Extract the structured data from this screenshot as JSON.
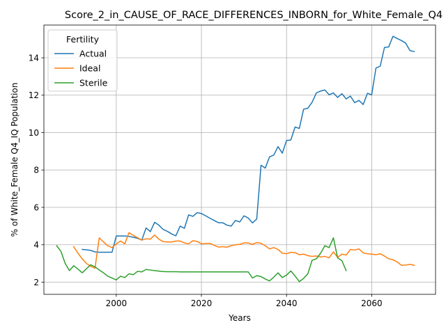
{
  "chart_data": {
    "type": "line",
    "title": "Score_2_in_CAUSE_OF_RACE_DIFFERENCES_INBORN_for_White_Female_Q4",
    "xlabel": "Years",
    "ylabel": "% of White_Female Q4_IQ Population",
    "xlim": [
      1983,
      2075
    ],
    "ylim": [
      1.35,
      15.75
    ],
    "x_ticks": [
      2000,
      2020,
      2040,
      2060
    ],
    "y_ticks": [
      2,
      4,
      6,
      8,
      10,
      12,
      14
    ],
    "grid": true,
    "legend": {
      "title": "Fertility",
      "placement": "top-left"
    },
    "series": [
      {
        "name": "Actual",
        "color": "#1f77b4",
        "points": [
          [
            1992,
            3.75
          ],
          [
            1993,
            3.73
          ],
          [
            1994,
            3.7
          ],
          [
            1995,
            3.62
          ],
          [
            1996,
            3.6
          ],
          [
            1997,
            3.6
          ],
          [
            1998,
            3.6
          ],
          [
            1999,
            3.6
          ],
          [
            2000,
            4.47
          ],
          [
            2001,
            4.47
          ],
          [
            2002,
            4.47
          ],
          [
            2003,
            4.45
          ],
          [
            2004,
            4.4
          ],
          [
            2005,
            4.35
          ],
          [
            2006,
            4.25
          ],
          [
            2007,
            4.9
          ],
          [
            2008,
            4.7
          ],
          [
            2009,
            5.2
          ],
          [
            2010,
            5.05
          ],
          [
            2011,
            4.82
          ],
          [
            2012,
            4.72
          ],
          [
            2013,
            4.58
          ],
          [
            2014,
            4.48
          ],
          [
            2015,
            5.0
          ],
          [
            2016,
            4.88
          ],
          [
            2017,
            5.6
          ],
          [
            2018,
            5.52
          ],
          [
            2019,
            5.72
          ],
          [
            2020,
            5.67
          ],
          [
            2021,
            5.55
          ],
          [
            2022,
            5.42
          ],
          [
            2023,
            5.3
          ],
          [
            2024,
            5.18
          ],
          [
            2025,
            5.18
          ],
          [
            2026,
            5.05
          ],
          [
            2027,
            5.0
          ],
          [
            2028,
            5.3
          ],
          [
            2029,
            5.22
          ],
          [
            2030,
            5.55
          ],
          [
            2031,
            5.43
          ],
          [
            2032,
            5.17
          ],
          [
            2033,
            5.38
          ],
          [
            2034,
            8.25
          ],
          [
            2035,
            8.1
          ],
          [
            2036,
            8.7
          ],
          [
            2037,
            8.8
          ],
          [
            2038,
            9.25
          ],
          [
            2039,
            8.9
          ],
          [
            2040,
            9.58
          ],
          [
            2041,
            9.6
          ],
          [
            2042,
            10.3
          ],
          [
            2043,
            10.22
          ],
          [
            2044,
            11.25
          ],
          [
            2045,
            11.3
          ],
          [
            2046,
            11.62
          ],
          [
            2047,
            12.12
          ],
          [
            2048,
            12.22
          ],
          [
            2049,
            12.28
          ],
          [
            2050,
            12.02
          ],
          [
            2051,
            12.12
          ],
          [
            2052,
            11.88
          ],
          [
            2053,
            12.08
          ],
          [
            2054,
            11.8
          ],
          [
            2055,
            11.95
          ],
          [
            2056,
            11.6
          ],
          [
            2057,
            11.72
          ],
          [
            2058,
            11.5
          ],
          [
            2059,
            12.1
          ],
          [
            2060,
            12.02
          ],
          [
            2061,
            13.45
          ],
          [
            2062,
            13.55
          ],
          [
            2063,
            14.55
          ],
          [
            2064,
            14.58
          ],
          [
            2065,
            15.15
          ],
          [
            2066,
            15.03
          ],
          [
            2067,
            14.92
          ],
          [
            2068,
            14.78
          ],
          [
            2069,
            14.38
          ],
          [
            2070,
            14.33
          ]
        ]
      },
      {
        "name": "Ideal",
        "color": "#ff7f0e",
        "points": [
          [
            1990,
            3.9
          ],
          [
            1991,
            3.55
          ],
          [
            1992,
            3.25
          ],
          [
            1993,
            3.0
          ],
          [
            1994,
            2.85
          ],
          [
            1995,
            2.75
          ],
          [
            1996,
            4.37
          ],
          [
            1997,
            4.15
          ],
          [
            1998,
            3.95
          ],
          [
            1999,
            3.85
          ],
          [
            2000,
            4.05
          ],
          [
            2001,
            4.2
          ],
          [
            2002,
            4.05
          ],
          [
            2003,
            4.65
          ],
          [
            2004,
            4.5
          ],
          [
            2005,
            4.38
          ],
          [
            2006,
            4.25
          ],
          [
            2007,
            4.32
          ],
          [
            2008,
            4.3
          ],
          [
            2009,
            4.52
          ],
          [
            2010,
            4.3
          ],
          [
            2011,
            4.17
          ],
          [
            2012,
            4.15
          ],
          [
            2013,
            4.15
          ],
          [
            2014,
            4.2
          ],
          [
            2015,
            4.2
          ],
          [
            2016,
            4.1
          ],
          [
            2017,
            4.05
          ],
          [
            2018,
            4.22
          ],
          [
            2019,
            4.18
          ],
          [
            2020,
            4.05
          ],
          [
            2021,
            4.07
          ],
          [
            2022,
            4.08
          ],
          [
            2023,
            3.97
          ],
          [
            2024,
            3.88
          ],
          [
            2025,
            3.9
          ],
          [
            2026,
            3.87
          ],
          [
            2027,
            3.95
          ],
          [
            2028,
            4.0
          ],
          [
            2029,
            4.02
          ],
          [
            2030,
            4.1
          ],
          [
            2031,
            4.1
          ],
          [
            2032,
            4.02
          ],
          [
            2033,
            4.12
          ],
          [
            2034,
            4.08
          ],
          [
            2035,
            3.95
          ],
          [
            2036,
            3.78
          ],
          [
            2037,
            3.85
          ],
          [
            2038,
            3.75
          ],
          [
            2039,
            3.55
          ],
          [
            2040,
            3.52
          ],
          [
            2041,
            3.6
          ],
          [
            2042,
            3.58
          ],
          [
            2043,
            3.47
          ],
          [
            2044,
            3.5
          ],
          [
            2045,
            3.42
          ],
          [
            2046,
            3.38
          ],
          [
            2047,
            3.4
          ],
          [
            2048,
            3.35
          ],
          [
            2049,
            3.38
          ],
          [
            2050,
            3.3
          ],
          [
            2051,
            3.62
          ],
          [
            2052,
            3.33
          ],
          [
            2053,
            3.5
          ],
          [
            2054,
            3.45
          ],
          [
            2055,
            3.75
          ],
          [
            2056,
            3.72
          ],
          [
            2057,
            3.78
          ],
          [
            2058,
            3.57
          ],
          [
            2059,
            3.52
          ],
          [
            2060,
            3.5
          ],
          [
            2061,
            3.47
          ],
          [
            2062,
            3.52
          ],
          [
            2063,
            3.4
          ],
          [
            2064,
            3.25
          ],
          [
            2065,
            3.2
          ],
          [
            2066,
            3.08
          ],
          [
            2067,
            2.9
          ],
          [
            2068,
            2.92
          ],
          [
            2069,
            2.95
          ],
          [
            2070,
            2.9
          ]
        ]
      },
      {
        "name": "Sterile",
        "color": "#2ca02c",
        "points": [
          [
            1986,
            3.95
          ],
          [
            1987,
            3.65
          ],
          [
            1988,
            3.0
          ],
          [
            1989,
            2.62
          ],
          [
            1990,
            2.88
          ],
          [
            1991,
            2.7
          ],
          [
            1992,
            2.5
          ],
          [
            1993,
            2.72
          ],
          [
            1994,
            2.93
          ],
          [
            1995,
            2.82
          ],
          [
            1996,
            2.65
          ],
          [
            1997,
            2.5
          ],
          [
            1998,
            2.32
          ],
          [
            1999,
            2.22
          ],
          [
            2000,
            2.12
          ],
          [
            2001,
            2.32
          ],
          [
            2002,
            2.25
          ],
          [
            2003,
            2.45
          ],
          [
            2004,
            2.4
          ],
          [
            2005,
            2.58
          ],
          [
            2006,
            2.55
          ],
          [
            2007,
            2.68
          ],
          [
            2008,
            2.65
          ],
          [
            2009,
            2.62
          ],
          [
            2010,
            2.59
          ],
          [
            2011,
            2.57
          ],
          [
            2012,
            2.56
          ],
          [
            2013,
            2.56
          ],
          [
            2014,
            2.56
          ],
          [
            2015,
            2.55
          ],
          [
            2016,
            2.55
          ],
          [
            2017,
            2.55
          ],
          [
            2018,
            2.55
          ],
          [
            2019,
            2.55
          ],
          [
            2020,
            2.55
          ],
          [
            2021,
            2.55
          ],
          [
            2022,
            2.55
          ],
          [
            2023,
            2.55
          ],
          [
            2024,
            2.55
          ],
          [
            2025,
            2.55
          ],
          [
            2026,
            2.55
          ],
          [
            2027,
            2.55
          ],
          [
            2028,
            2.55
          ],
          [
            2029,
            2.55
          ],
          [
            2030,
            2.55
          ],
          [
            2031,
            2.55
          ],
          [
            2032,
            2.22
          ],
          [
            2033,
            2.35
          ],
          [
            2034,
            2.3
          ],
          [
            2035,
            2.17
          ],
          [
            2036,
            2.07
          ],
          [
            2037,
            2.27
          ],
          [
            2038,
            2.5
          ],
          [
            2039,
            2.25
          ],
          [
            2040,
            2.38
          ],
          [
            2041,
            2.6
          ],
          [
            2042,
            2.33
          ],
          [
            2043,
            2.03
          ],
          [
            2044,
            2.2
          ],
          [
            2045,
            2.45
          ],
          [
            2046,
            3.17
          ],
          [
            2047,
            3.25
          ],
          [
            2048,
            3.55
          ],
          [
            2049,
            3.95
          ],
          [
            2050,
            3.85
          ],
          [
            2051,
            4.37
          ],
          [
            2052,
            3.3
          ],
          [
            2053,
            3.15
          ],
          [
            2054,
            2.62
          ]
        ]
      }
    ]
  }
}
